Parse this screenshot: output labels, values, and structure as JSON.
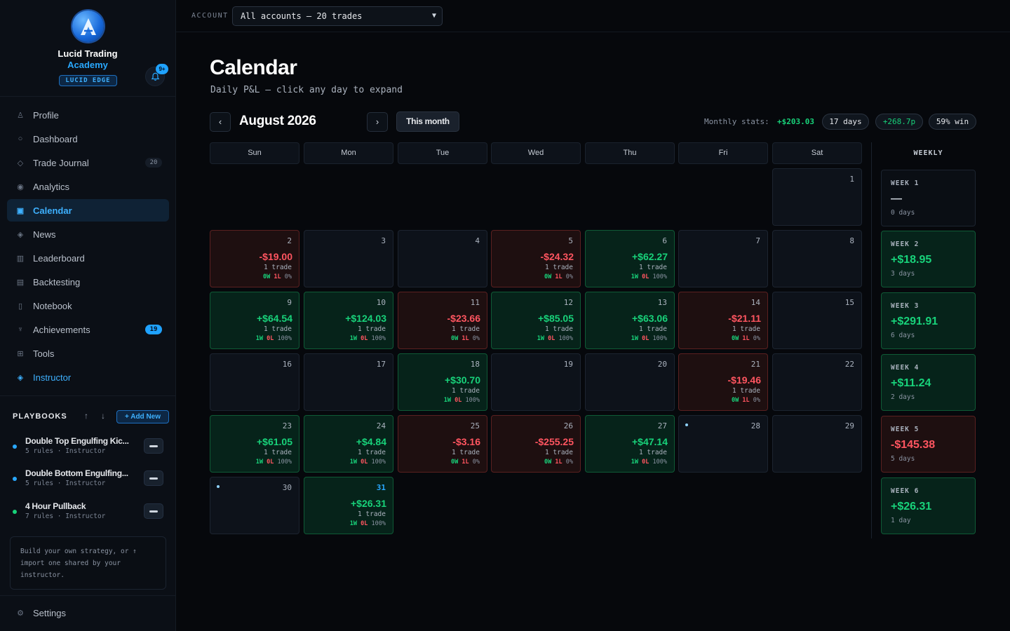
{
  "brand": {
    "line1": "Lucid Trading",
    "line2": "Academy",
    "badge": "LUCID EDGE",
    "notification_count": "9+"
  },
  "nav": [
    {
      "label": "Profile",
      "icon": "user-icon",
      "glyph": "♙"
    },
    {
      "label": "Dashboard",
      "icon": "dashboard-icon",
      "glyph": "○"
    },
    {
      "label": "Trade Journal",
      "icon": "journal-icon",
      "glyph": "◇",
      "count": "20"
    },
    {
      "label": "Analytics",
      "icon": "analytics-icon",
      "glyph": "◉"
    },
    {
      "label": "Calendar",
      "icon": "calendar-icon",
      "glyph": "▣",
      "active": true
    },
    {
      "label": "News",
      "icon": "news-icon",
      "glyph": "◈"
    },
    {
      "label": "Leaderboard",
      "icon": "leaderboard-icon",
      "glyph": "▥"
    },
    {
      "label": "Backtesting",
      "icon": "backtesting-icon",
      "glyph": "▤"
    },
    {
      "label": "Notebook",
      "icon": "notebook-icon",
      "glyph": "▯"
    },
    {
      "label": "Achievements",
      "icon": "trophy-icon",
      "glyph": "♆",
      "count": "19"
    },
    {
      "label": "Tools",
      "icon": "tools-icon",
      "glyph": "⊞"
    },
    {
      "label": "Instructor",
      "icon": "instructor-icon",
      "glyph": "◈"
    }
  ],
  "playbooks": {
    "title": "PLAYBOOKS",
    "add_label": "+ Add New",
    "items": [
      {
        "name": "Double Top Engulfing Kic...",
        "meta": "5 rules · Instructor",
        "dot_color": "#29a8ff"
      },
      {
        "name": "Double Bottom Engulfing...",
        "meta": "5 rules · Instructor",
        "dot_color": "#29a8ff"
      },
      {
        "name": "4 Hour Pullback",
        "meta": "7 rules · Instructor",
        "dot_color": "#18d27a"
      }
    ],
    "note": "Build your own strategy, or ↑ import one shared by your instructor."
  },
  "settings_label": "Settings",
  "topbar": {
    "account_label": "ACCOUNT",
    "account_value": "All accounts — 20 trades"
  },
  "page": {
    "title": "Calendar",
    "subtitle": "Daily P&L — click any day to expand"
  },
  "calendar": {
    "month_label": "August 2026",
    "prev": "‹",
    "next": "›",
    "this_month_label": "This month",
    "stats_label": "Monthly stats:",
    "stats_pnl": "+$203.03",
    "stats_days": "17 days",
    "stats_points": "+268.7p",
    "stats_winrate": "59% win",
    "weekdays": [
      "Sun",
      "Mon",
      "Tue",
      "Wed",
      "Thu",
      "Fri",
      "Sat"
    ],
    "weekly_title": "WEEKLY",
    "days": [
      {
        "day": "1",
        "col": 6,
        "row": 0
      },
      {
        "day": "2",
        "col": 0,
        "row": 1,
        "pnl": "-$19.00",
        "trades": "1 trade",
        "w": "0W",
        "l": "1L",
        "pct": "0%",
        "result": "loss"
      },
      {
        "day": "3",
        "col": 1,
        "row": 1
      },
      {
        "day": "4",
        "col": 2,
        "row": 1
      },
      {
        "day": "5",
        "col": 3,
        "row": 1,
        "pnl": "-$24.32",
        "trades": "1 trade",
        "w": "0W",
        "l": "1L",
        "pct": "0%",
        "result": "loss"
      },
      {
        "day": "6",
        "col": 4,
        "row": 1,
        "pnl": "+$62.27",
        "trades": "1 trade",
        "w": "1W",
        "l": "0L",
        "pct": "100%",
        "result": "win"
      },
      {
        "day": "7",
        "col": 5,
        "row": 1
      },
      {
        "day": "8",
        "col": 6,
        "row": 1
      },
      {
        "day": "9",
        "col": 0,
        "row": 2,
        "pnl": "+$64.54",
        "trades": "1 trade",
        "w": "1W",
        "l": "0L",
        "pct": "100%",
        "result": "win"
      },
      {
        "day": "10",
        "col": 1,
        "row": 2,
        "pnl": "+$124.03",
        "trades": "1 trade",
        "w": "1W",
        "l": "0L",
        "pct": "100%",
        "result": "win"
      },
      {
        "day": "11",
        "col": 2,
        "row": 2,
        "pnl": "-$23.66",
        "trades": "1 trade",
        "w": "0W",
        "l": "1L",
        "pct": "0%",
        "result": "loss"
      },
      {
        "day": "12",
        "col": 3,
        "row": 2,
        "pnl": "+$85.05",
        "trades": "1 trade",
        "w": "1W",
        "l": "0L",
        "pct": "100%",
        "result": "win"
      },
      {
        "day": "13",
        "col": 4,
        "row": 2,
        "pnl": "+$63.06",
        "trades": "1 trade",
        "w": "1W",
        "l": "0L",
        "pct": "100%",
        "result": "win"
      },
      {
        "day": "14",
        "col": 5,
        "row": 2,
        "pnl": "-$21.11",
        "trades": "1 trade",
        "w": "0W",
        "l": "1L",
        "pct": "0%",
        "result": "loss"
      },
      {
        "day": "15",
        "col": 6,
        "row": 2
      },
      {
        "day": "16",
        "col": 0,
        "row": 3
      },
      {
        "day": "17",
        "col": 1,
        "row": 3
      },
      {
        "day": "18",
        "col": 2,
        "row": 3,
        "pnl": "+$30.70",
        "trades": "1 trade",
        "w": "1W",
        "l": "0L",
        "pct": "100%",
        "result": "win"
      },
      {
        "day": "19",
        "col": 3,
        "row": 3
      },
      {
        "day": "20",
        "col": 4,
        "row": 3
      },
      {
        "day": "21",
        "col": 5,
        "row": 3,
        "pnl": "-$19.46",
        "trades": "1 trade",
        "w": "0W",
        "l": "1L",
        "pct": "0%",
        "result": "loss"
      },
      {
        "day": "22",
        "col": 6,
        "row": 3
      },
      {
        "day": "23",
        "col": 0,
        "row": 4,
        "pnl": "+$61.05",
        "trades": "1 trade",
        "w": "1W",
        "l": "0L",
        "pct": "100%",
        "result": "win"
      },
      {
        "day": "24",
        "col": 1,
        "row": 4,
        "pnl": "+$4.84",
        "trades": "1 trade",
        "w": "1W",
        "l": "0L",
        "pct": "100%",
        "result": "win"
      },
      {
        "day": "25",
        "col": 2,
        "row": 4,
        "pnl": "-$3.16",
        "trades": "1 trade",
        "w": "0W",
        "l": "1L",
        "pct": "0%",
        "result": "loss"
      },
      {
        "day": "26",
        "col": 3,
        "row": 4,
        "pnl": "-$255.25",
        "trades": "1 trade",
        "w": "0W",
        "l": "1L",
        "pct": "0%",
        "result": "loss"
      },
      {
        "day": "27",
        "col": 4,
        "row": 4,
        "pnl": "+$47.14",
        "trades": "1 trade",
        "w": "1W",
        "l": "0L",
        "pct": "100%",
        "result": "win"
      },
      {
        "day": "28",
        "col": 5,
        "row": 4,
        "dot": true
      },
      {
        "day": "29",
        "col": 6,
        "row": 4
      },
      {
        "day": "30",
        "col": 0,
        "row": 5,
        "dot": true
      },
      {
        "day": "31",
        "col": 1,
        "row": 5,
        "pnl": "+$26.31",
        "trades": "1 trade",
        "w": "1W",
        "l": "0L",
        "pct": "100%",
        "result": "win",
        "today": true
      }
    ],
    "weeks": [
      {
        "label": "WEEK 1",
        "pnl": "—",
        "days": "0 days",
        "result": "empty"
      },
      {
        "label": "WEEK 2",
        "pnl": "+$18.95",
        "days": "3 days",
        "result": "win"
      },
      {
        "label": "WEEK 3",
        "pnl": "+$291.91",
        "days": "6 days",
        "result": "win"
      },
      {
        "label": "WEEK 4",
        "pnl": "+$11.24",
        "days": "2 days",
        "result": "win"
      },
      {
        "label": "WEEK 5",
        "pnl": "-$145.38",
        "days": "5 days",
        "result": "loss"
      },
      {
        "label": "WEEK 6",
        "pnl": "+$26.31",
        "days": "1 day",
        "result": "win"
      }
    ]
  }
}
